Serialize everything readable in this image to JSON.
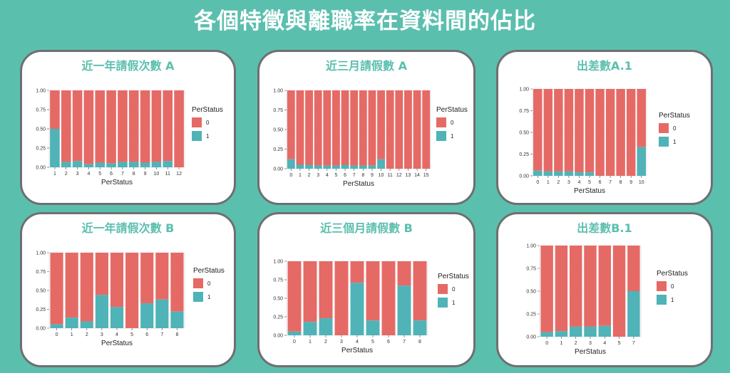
{
  "page": {
    "title": "各個特徵與離職率在資料間的佔比"
  },
  "colors": {
    "zero": "#e56a66",
    "one": "#4fb3b7",
    "grid": "#ebebeb"
  },
  "chart_data": [
    {
      "type": "bar",
      "stacked": "fill",
      "title": "近一年請假次數 A",
      "xlabel": "PerStatus",
      "ylabel": "",
      "ylim": [
        0,
        1
      ],
      "yticks": [
        "0.00",
        "0.25",
        "0.50",
        "0.75",
        "1.00"
      ],
      "legend": {
        "title": "PerStatus",
        "items": [
          "0",
          "1"
        ],
        "position": "right"
      },
      "categories": [
        "1",
        "2",
        "3",
        "4",
        "5",
        "6",
        "7",
        "8",
        "9",
        "10",
        "11",
        "12"
      ],
      "series": [
        {
          "name": "0",
          "values": [
            0.5,
            0.93,
            0.92,
            0.96,
            0.94,
            0.95,
            0.93,
            0.93,
            0.94,
            0.93,
            0.92,
            1.0
          ]
        },
        {
          "name": "1",
          "values": [
            0.5,
            0.07,
            0.08,
            0.04,
            0.06,
            0.05,
            0.07,
            0.07,
            0.06,
            0.07,
            0.08,
            0.0
          ]
        }
      ]
    },
    {
      "type": "bar",
      "stacked": "fill",
      "title": "近三月請假數 A",
      "xlabel": "PerStatus",
      "ylabel": "",
      "ylim": [
        0,
        1
      ],
      "yticks": [
        "0.00",
        "0.25",
        "0.50",
        "0.75",
        "1.00"
      ],
      "legend": {
        "title": "PerStatus",
        "items": [
          "0",
          "1"
        ],
        "position": "right"
      },
      "categories": [
        "0",
        "1",
        "2",
        "3",
        "4",
        "5",
        "6",
        "7",
        "8",
        "9",
        "10",
        "11",
        "12",
        "13",
        "14",
        "15"
      ],
      "series": [
        {
          "name": "0",
          "values": [
            0.88,
            0.95,
            0.95,
            0.96,
            0.96,
            0.96,
            0.95,
            0.96,
            0.96,
            0.96,
            0.88,
            1.0,
            1.0,
            1.0,
            1.0,
            1.0
          ]
        },
        {
          "name": "1",
          "values": [
            0.12,
            0.05,
            0.05,
            0.04,
            0.04,
            0.04,
            0.05,
            0.04,
            0.04,
            0.04,
            0.12,
            0.0,
            0.0,
            0.0,
            0.0,
            0.0
          ]
        }
      ]
    },
    {
      "type": "bar",
      "stacked": "fill",
      "title": "出差數A.1",
      "xlabel": "PerStatus",
      "ylabel": "",
      "ylim": [
        0,
        1
      ],
      "yticks": [
        "0.00",
        "0.25",
        "0.50",
        "0.75",
        "1.00"
      ],
      "legend": {
        "title": "PerStatus",
        "items": [
          "0",
          "1"
        ],
        "position": "right"
      },
      "categories": [
        "0",
        "1",
        "2",
        "3",
        "4",
        "5",
        "6",
        "7",
        "8",
        "9",
        "10"
      ],
      "series": [
        {
          "name": "0",
          "values": [
            0.94,
            0.95,
            0.95,
            0.95,
            0.96,
            0.96,
            1.0,
            1.0,
            1.0,
            1.0,
            0.67
          ]
        },
        {
          "name": "1",
          "values": [
            0.06,
            0.05,
            0.05,
            0.05,
            0.04,
            0.04,
            0.0,
            0.0,
            0.0,
            0.0,
            0.33
          ]
        }
      ]
    },
    {
      "type": "bar",
      "stacked": "fill",
      "title": "近一年請假次數 B",
      "xlabel": "PerStatus",
      "ylabel": "",
      "ylim": [
        0,
        1
      ],
      "yticks": [
        "0.00",
        "0.25",
        "0.50",
        "0.75",
        "1.00"
      ],
      "legend": {
        "title": "PerStatus",
        "items": [
          "0",
          "1"
        ],
        "position": "right"
      },
      "categories": [
        "0",
        "1",
        "2",
        "3",
        "4",
        "5",
        "6",
        "7",
        "8"
      ],
      "series": [
        {
          "name": "0",
          "values": [
            0.95,
            0.86,
            0.91,
            0.56,
            0.72,
            1.0,
            0.67,
            0.62,
            0.78
          ]
        },
        {
          "name": "1",
          "values": [
            0.05,
            0.14,
            0.09,
            0.44,
            0.28,
            0.0,
            0.33,
            0.38,
            0.22
          ]
        }
      ]
    },
    {
      "type": "bar",
      "stacked": "fill",
      "title": "近三個月請假數 B",
      "xlabel": "PerStatus",
      "ylabel": "",
      "ylim": [
        0,
        1
      ],
      "yticks": [
        "0.00",
        "0.25",
        "0.50",
        "0.75",
        "1.00"
      ],
      "legend": {
        "title": "PerStatus",
        "items": [
          "0",
          "1"
        ],
        "position": "right"
      },
      "categories": [
        "0",
        "1",
        "2",
        "3",
        "4",
        "5",
        "6",
        "7",
        "8"
      ],
      "series": [
        {
          "name": "0",
          "values": [
            0.95,
            0.82,
            0.77,
            1.0,
            0.29,
            0.8,
            1.0,
            0.33,
            0.8
          ]
        },
        {
          "name": "1",
          "values": [
            0.05,
            0.18,
            0.23,
            0.0,
            0.71,
            0.2,
            0.0,
            0.67,
            0.2
          ]
        }
      ]
    },
    {
      "type": "bar",
      "stacked": "fill",
      "title": "出差數B.1",
      "xlabel": "PerStatus",
      "ylabel": "",
      "ylim": [
        0,
        1
      ],
      "yticks": [
        "0.00",
        "0.25",
        "0.50",
        "0.75",
        "1.00"
      ],
      "legend": {
        "title": "PerStatus",
        "items": [
          "0",
          "1"
        ],
        "position": "right"
      },
      "categories": [
        "0",
        "1",
        "2",
        "3",
        "4",
        "5",
        "7"
      ],
      "series": [
        {
          "name": "0",
          "values": [
            0.95,
            0.94,
            0.89,
            0.89,
            0.88,
            1.0,
            0.5
          ]
        },
        {
          "name": "1",
          "values": [
            0.05,
            0.06,
            0.11,
            0.11,
            0.12,
            0.0,
            0.5
          ]
        }
      ]
    }
  ]
}
